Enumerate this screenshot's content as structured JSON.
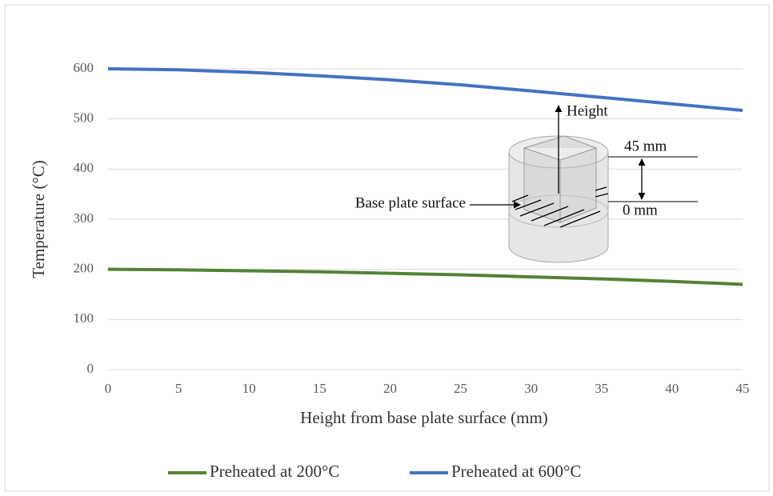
{
  "chart_data": {
    "type": "line",
    "x_label": "Height from base plate surface (mm)",
    "y_label": "Temperature (°C)",
    "x": [
      0,
      5,
      10,
      15,
      20,
      25,
      30,
      35,
      40,
      45
    ],
    "series": [
      {
        "name": "Preheated at 200°C",
        "color": "#548235",
        "values": [
          200,
          199,
          197,
          195,
          192,
          189,
          185,
          181,
          176,
          170
        ]
      },
      {
        "name": "Preheated at 600°C",
        "color": "#4472c4",
        "values": [
          600,
          598,
          593,
          586,
          578,
          568,
          556,
          543,
          530,
          517
        ]
      }
    ],
    "xlim": [
      0,
      45
    ],
    "xticks": [
      0,
      5,
      10,
      15,
      20,
      25,
      30,
      35,
      40,
      45
    ],
    "ylim": [
      0,
      600
    ],
    "yticks": [
      0,
      100,
      200,
      300,
      400,
      500,
      600
    ],
    "grid": true,
    "legend": "bottom",
    "annotations": [
      "Height",
      "45 mm",
      "0 mm",
      "Base plate surface"
    ]
  }
}
